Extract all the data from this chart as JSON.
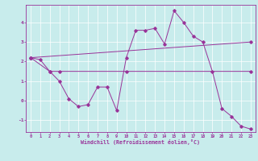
{
  "xlabel": "Windchill (Refroidissement éolien,°C)",
  "bg_color": "#c8ecec",
  "line_color": "#993399",
  "grid_color": "#ffffff",
  "xlim": [
    -0.5,
    23.5
  ],
  "ylim": [
    -1.6,
    4.9
  ],
  "xticks": [
    0,
    1,
    2,
    3,
    4,
    5,
    6,
    7,
    8,
    9,
    10,
    11,
    12,
    13,
    14,
    15,
    16,
    17,
    18,
    19,
    20,
    21,
    22,
    23
  ],
  "yticks": [
    -1,
    0,
    1,
    2,
    3,
    4
  ],
  "line1_x": [
    0,
    1,
    2,
    3,
    4,
    5,
    6,
    7,
    8,
    9,
    10,
    11,
    12,
    13,
    14,
    15,
    16,
    17,
    18,
    19,
    20,
    21,
    22,
    23
  ],
  "line1_y": [
    2.2,
    2.1,
    1.5,
    1.0,
    0.1,
    -0.3,
    -0.2,
    0.7,
    0.7,
    -0.5,
    2.2,
    3.6,
    3.6,
    3.7,
    2.9,
    4.6,
    4.0,
    3.3,
    3.0,
    1.5,
    -0.4,
    -0.8,
    -1.3,
    -1.45
  ],
  "line2_x": [
    0,
    23
  ],
  "line2_y": [
    2.2,
    3.0
  ],
  "line3_x": [
    0,
    2,
    3,
    10,
    23
  ],
  "line3_y": [
    2.2,
    1.5,
    1.5,
    1.5,
    1.5
  ]
}
